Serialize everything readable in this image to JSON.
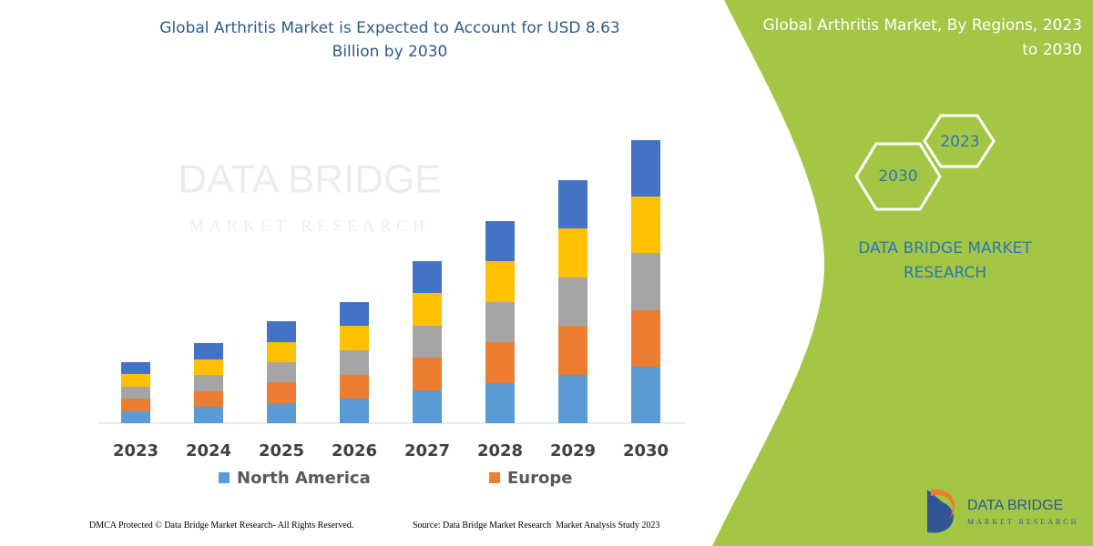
{
  "chart_data": {
    "type": "bar",
    "stacked": true,
    "title": "Global Arthritis Market is Expected to Account for USD 8.63 Billion by 2030",
    "categories": [
      "2023",
      "2024",
      "2025",
      "2026",
      "2027",
      "2028",
      "2029",
      "2030"
    ],
    "series": [
      {
        "name": "North America",
        "color": "#5b9bd5",
        "values": [
          1.3,
          1.8,
          2.2,
          2.7,
          3.6,
          4.4,
          5.3,
          6.2
        ]
      },
      {
        "name": "Europe",
        "color": "#ed7d31",
        "values": [
          1.4,
          1.7,
          2.3,
          2.6,
          3.6,
          4.5,
          5.4,
          6.2
        ]
      },
      {
        "color": "#a5a5a5",
        "values": [
          1.3,
          1.8,
          2.2,
          2.7,
          3.5,
          4.4,
          5.3,
          6.3
        ]
      },
      {
        "color": "#ffc000",
        "values": [
          1.4,
          1.7,
          2.2,
          2.7,
          3.6,
          4.5,
          5.4,
          6.2
        ]
      },
      {
        "color": "#4472c4",
        "values": [
          1.3,
          1.8,
          2.3,
          2.6,
          3.5,
          4.4,
          5.3,
          6.2
        ]
      }
    ]
  },
  "watermark": {
    "name": "DATA BRIDGE",
    "tagline": "MARKET RESEARCH"
  },
  "side_panel": {
    "title": "Global Arthritis Market, By Regions, 2023 to 2030",
    "years": [
      "2023",
      "2030"
    ],
    "brand": "DATA BRIDGE MARKET RESEARCH"
  },
  "logo": {
    "name": "DATA BRIDGE",
    "tagline": "MARKET RESEARCH"
  },
  "footer": {
    "copyright": "DMCA Protected © Data Bridge Market Research- All Rights Reserved.",
    "source": "Source: Data Bridge Market Research  Market Analysis Study 2023"
  }
}
